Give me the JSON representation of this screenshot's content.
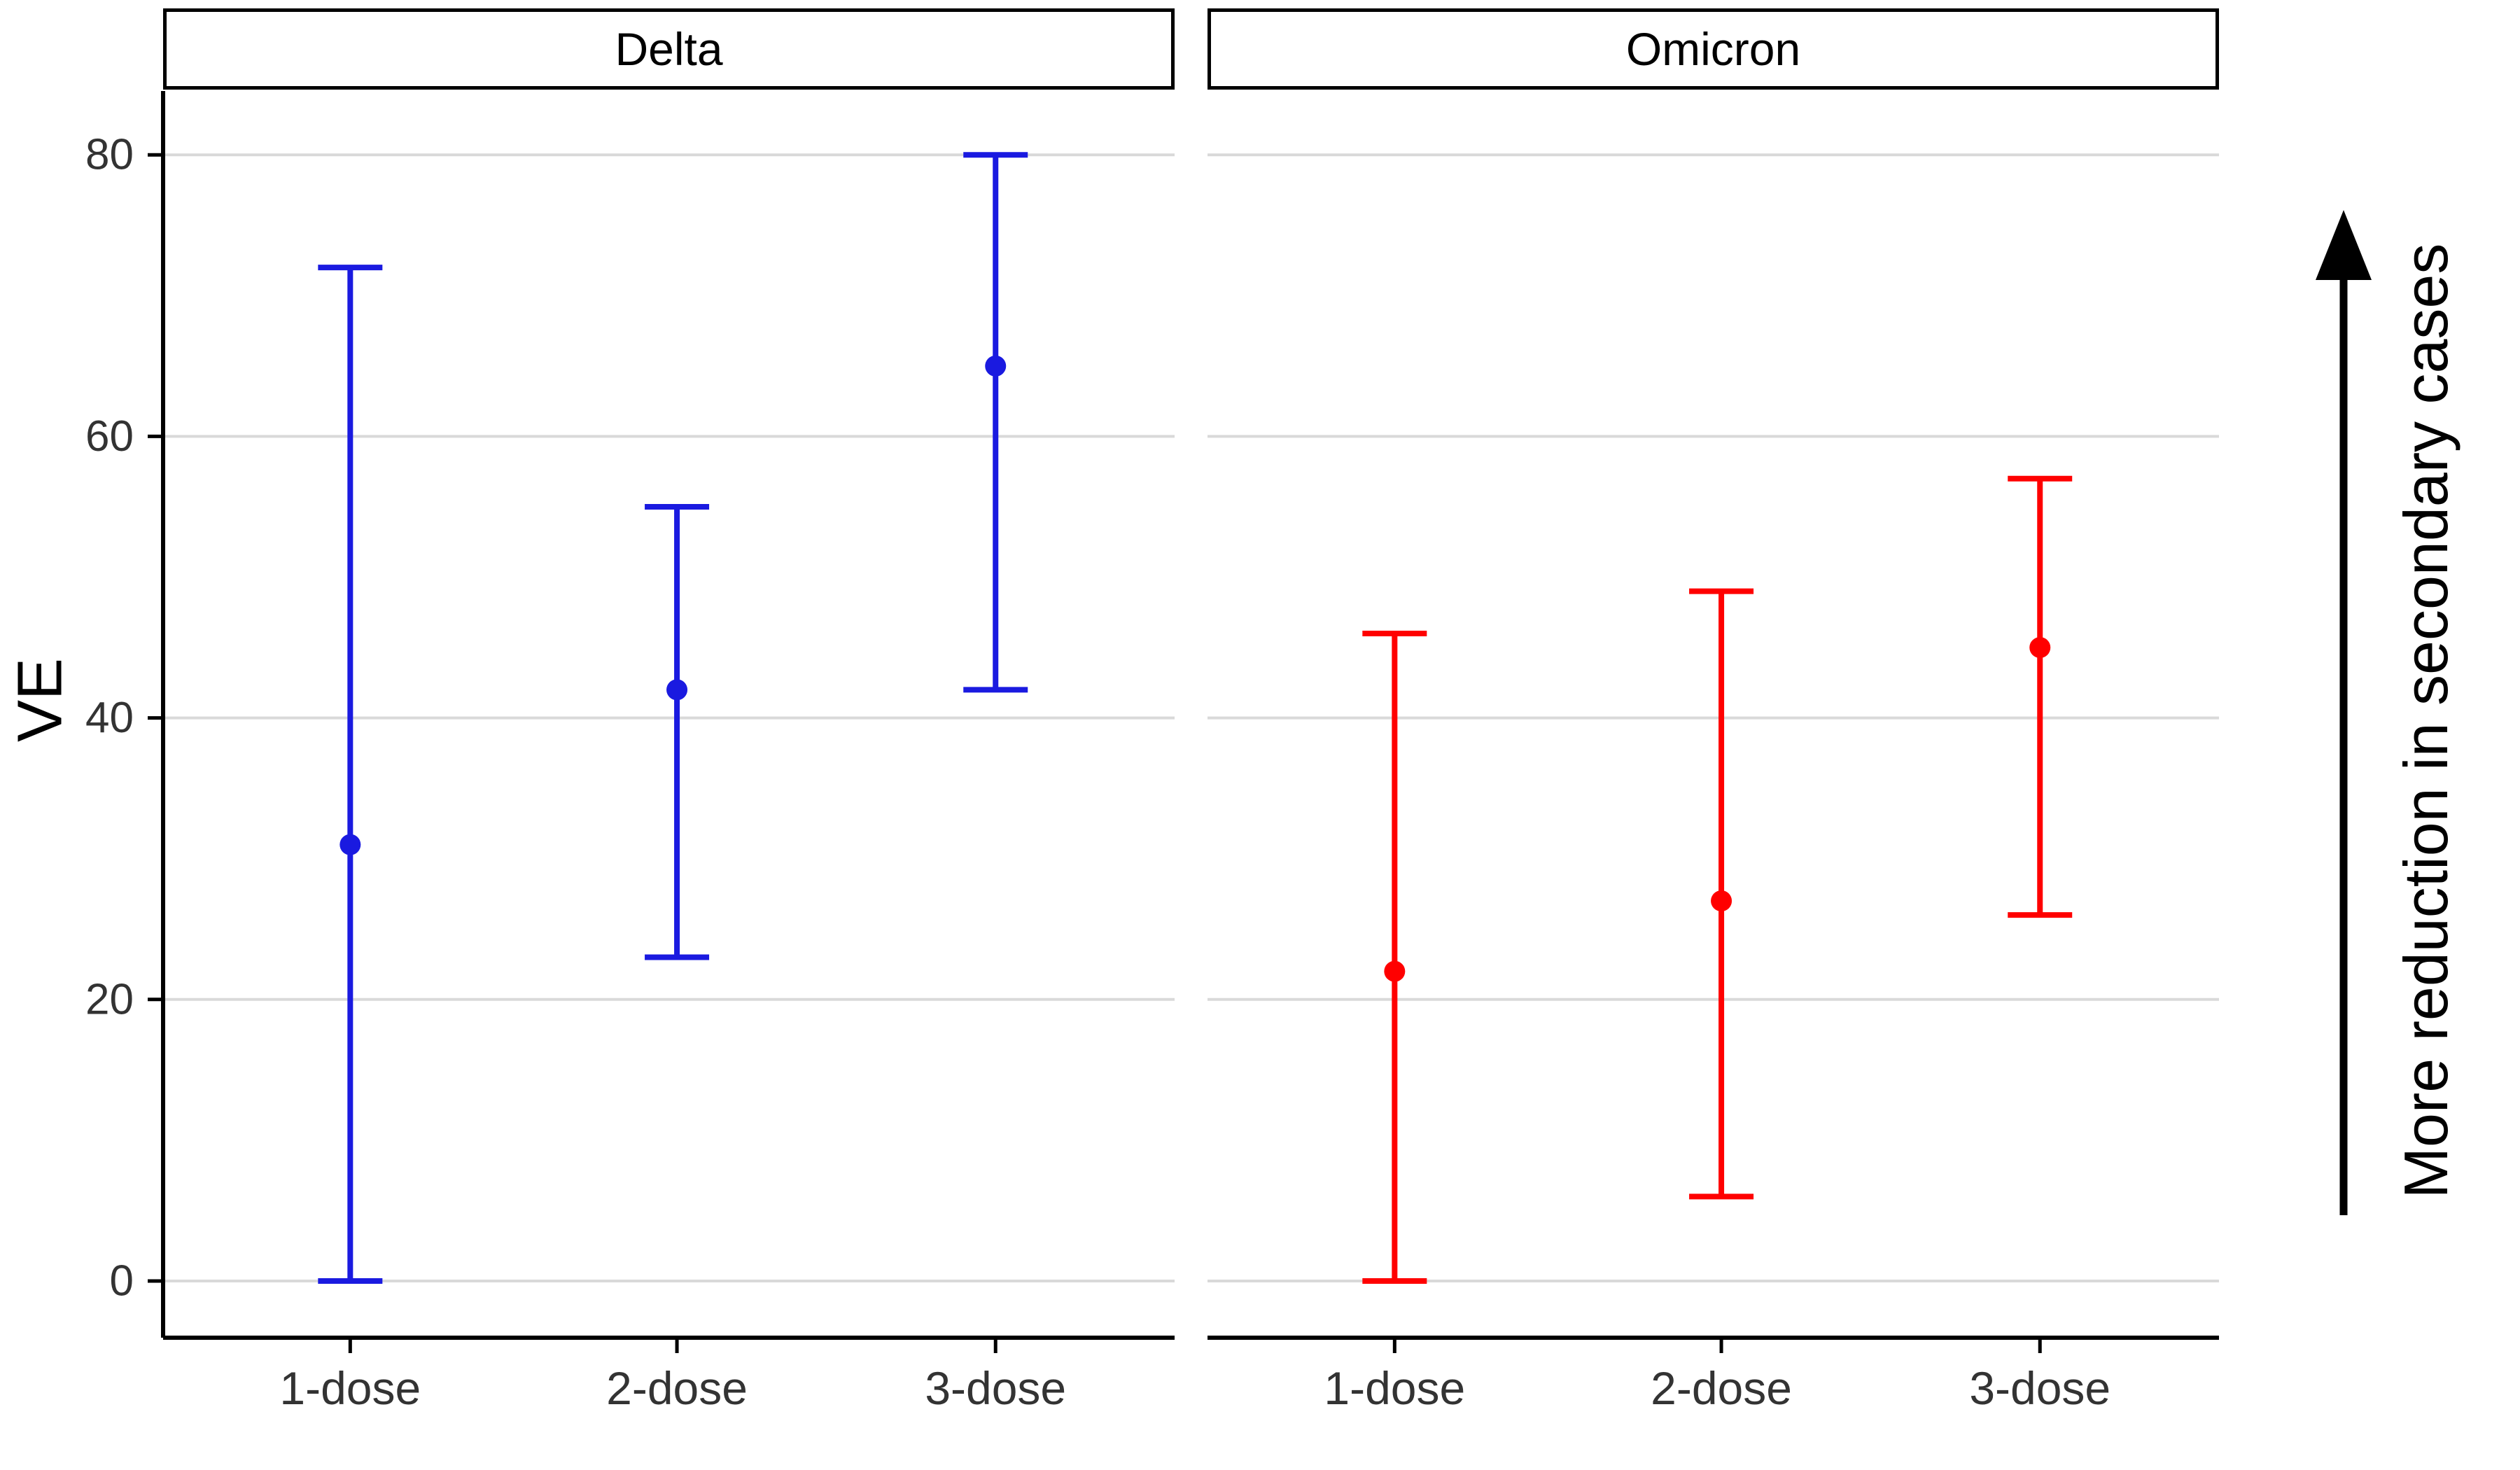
{
  "chart_data": {
    "type": "errorbar",
    "title": "",
    "ylabel": "VE",
    "xlabel": "",
    "right_annotation": "More reduction in secondary cases",
    "categories": [
      "1-dose",
      "2-dose",
      "3-dose"
    ],
    "y_ticks": [
      0,
      20,
      40,
      60,
      80
    ],
    "ylim": [
      -4,
      84
    ],
    "grid": "horizontal-major-only",
    "legend": "none",
    "panels": [
      {
        "title": "Delta",
        "color": "#1A1AE0",
        "points": [
          {
            "category": "1-dose",
            "estimate": 31,
            "lower": 0,
            "upper": 72
          },
          {
            "category": "2-dose",
            "estimate": 42,
            "lower": 23,
            "upper": 55
          },
          {
            "category": "3-dose",
            "estimate": 65,
            "lower": 42,
            "upper": 80
          }
        ]
      },
      {
        "title": "Omicron",
        "color": "#FF0000",
        "points": [
          {
            "category": "1-dose",
            "estimate": 22,
            "lower": 0,
            "upper": 46
          },
          {
            "category": "2-dose",
            "estimate": 27,
            "lower": 6,
            "upper": 49
          },
          {
            "category": "3-dose",
            "estimate": 45,
            "lower": 26,
            "upper": 57
          }
        ]
      }
    ],
    "colors": {
      "gridline": "#D9D9D9",
      "axis": "#000000",
      "tick_label": "#333333",
      "annotation_arrow": "#000000"
    }
  }
}
